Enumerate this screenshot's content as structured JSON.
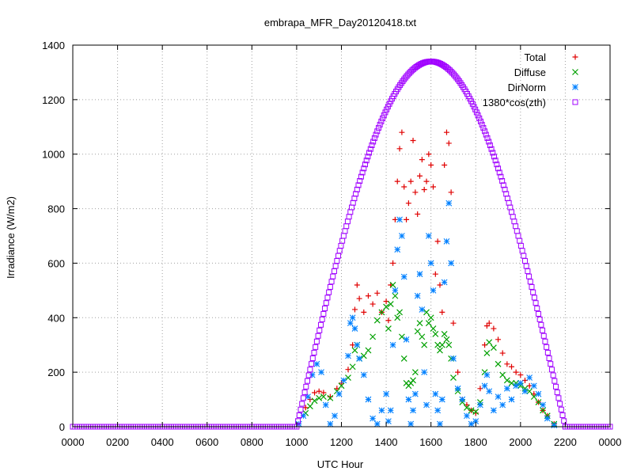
{
  "chart_data": {
    "type": "scatter",
    "title": "embrapa_MFR_Day20120418.txt",
    "xlabel": "UTC Hour",
    "ylabel": "Irradiance (W/m2)",
    "xlim": [
      0,
      2400
    ],
    "ylim": [
      0,
      1400
    ],
    "x_ticks": [
      "0000",
      "0200",
      "0400",
      "0600",
      "0800",
      "1000",
      "1200",
      "1400",
      "1600",
      "1800",
      "2000",
      "2200",
      "0000"
    ],
    "y_ticks": [
      "0",
      "200",
      "400",
      "600",
      "800",
      "1000",
      "1200",
      "1400"
    ],
    "grid": true,
    "legend_position": "top-right",
    "colors": {
      "total": "#e00000",
      "diffuse": "#00a000",
      "dirnorm": "#0080ff",
      "cos": "#a000ff"
    },
    "series": [
      {
        "name": "Total",
        "marker": "plus",
        "points": [
          [
            1040,
            70
          ],
          [
            1060,
            100
          ],
          [
            1080,
            125
          ],
          [
            1100,
            130
          ],
          [
            1120,
            125
          ],
          [
            1150,
            110
          ],
          [
            1180,
            140
          ],
          [
            1200,
            160
          ],
          [
            1230,
            210
          ],
          [
            1250,
            300
          ],
          [
            1260,
            430
          ],
          [
            1270,
            520
          ],
          [
            1280,
            470
          ],
          [
            1300,
            420
          ],
          [
            1320,
            480
          ],
          [
            1340,
            450
          ],
          [
            1360,
            490
          ],
          [
            1380,
            420
          ],
          [
            1400,
            460
          ],
          [
            1410,
            390
          ],
          [
            1420,
            520
          ],
          [
            1430,
            600
          ],
          [
            1440,
            760
          ],
          [
            1450,
            900
          ],
          [
            1460,
            1020
          ],
          [
            1470,
            1080
          ],
          [
            1480,
            880
          ],
          [
            1490,
            760
          ],
          [
            1500,
            820
          ],
          [
            1510,
            900
          ],
          [
            1520,
            1050
          ],
          [
            1530,
            860
          ],
          [
            1540,
            780
          ],
          [
            1550,
            920
          ],
          [
            1560,
            980
          ],
          [
            1570,
            870
          ],
          [
            1580,
            900
          ],
          [
            1590,
            1000
          ],
          [
            1600,
            960
          ],
          [
            1610,
            880
          ],
          [
            1620,
            560
          ],
          [
            1630,
            680
          ],
          [
            1640,
            520
          ],
          [
            1650,
            420
          ],
          [
            1660,
            960
          ],
          [
            1670,
            1080
          ],
          [
            1680,
            1040
          ],
          [
            1690,
            860
          ],
          [
            1700,
            380
          ],
          [
            1720,
            200
          ],
          [
            1740,
            100
          ],
          [
            1760,
            80
          ],
          [
            1780,
            60
          ],
          [
            1800,
            50
          ],
          [
            1820,
            140
          ],
          [
            1840,
            300
          ],
          [
            1850,
            370
          ],
          [
            1860,
            380
          ],
          [
            1880,
            360
          ],
          [
            1900,
            320
          ],
          [
            1920,
            270
          ],
          [
            1940,
            230
          ],
          [
            1960,
            220
          ],
          [
            1980,
            200
          ],
          [
            2000,
            190
          ],
          [
            2020,
            170
          ],
          [
            2040,
            150
          ],
          [
            2060,
            120
          ],
          [
            2080,
            90
          ],
          [
            2100,
            60
          ],
          [
            2120,
            40
          ],
          [
            2150,
            10
          ]
        ]
      },
      {
        "name": "Diffuse",
        "marker": "cross",
        "points": [
          [
            1040,
            50
          ],
          [
            1060,
            75
          ],
          [
            1080,
            95
          ],
          [
            1100,
            105
          ],
          [
            1120,
            110
          ],
          [
            1150,
            105
          ],
          [
            1180,
            130
          ],
          [
            1200,
            150
          ],
          [
            1230,
            180
          ],
          [
            1250,
            220
          ],
          [
            1260,
            280
          ],
          [
            1270,
            300
          ],
          [
            1280,
            250
          ],
          [
            1300,
            260
          ],
          [
            1320,
            280
          ],
          [
            1340,
            330
          ],
          [
            1360,
            390
          ],
          [
            1380,
            420
          ],
          [
            1400,
            440
          ],
          [
            1410,
            360
          ],
          [
            1420,
            450
          ],
          [
            1430,
            520
          ],
          [
            1440,
            480
          ],
          [
            1450,
            400
          ],
          [
            1460,
            420
          ],
          [
            1470,
            330
          ],
          [
            1480,
            250
          ],
          [
            1490,
            160
          ],
          [
            1500,
            150
          ],
          [
            1510,
            160
          ],
          [
            1520,
            170
          ],
          [
            1530,
            200
          ],
          [
            1540,
            350
          ],
          [
            1550,
            380
          ],
          [
            1560,
            330
          ],
          [
            1570,
            300
          ],
          [
            1580,
            420
          ],
          [
            1590,
            380
          ],
          [
            1600,
            400
          ],
          [
            1610,
            360
          ],
          [
            1620,
            340
          ],
          [
            1630,
            300
          ],
          [
            1640,
            280
          ],
          [
            1650,
            300
          ],
          [
            1660,
            340
          ],
          [
            1670,
            320
          ],
          [
            1680,
            300
          ],
          [
            1690,
            250
          ],
          [
            1700,
            180
          ],
          [
            1720,
            130
          ],
          [
            1740,
            90
          ],
          [
            1760,
            70
          ],
          [
            1780,
            60
          ],
          [
            1800,
            55
          ],
          [
            1820,
            90
          ],
          [
            1840,
            200
          ],
          [
            1850,
            270
          ],
          [
            1860,
            310
          ],
          [
            1880,
            290
          ],
          [
            1900,
            230
          ],
          [
            1920,
            190
          ],
          [
            1940,
            170
          ],
          [
            1960,
            160
          ],
          [
            1980,
            160
          ],
          [
            2000,
            150
          ],
          [
            2020,
            140
          ],
          [
            2040,
            130
          ],
          [
            2060,
            110
          ],
          [
            2080,
            90
          ],
          [
            2100,
            60
          ],
          [
            2120,
            40
          ],
          [
            2150,
            10
          ]
        ]
      },
      {
        "name": "DirNorm",
        "marker": "star",
        "points": [
          [
            1010,
            10
          ],
          [
            1030,
            40
          ],
          [
            1050,
            110
          ],
          [
            1070,
            190
          ],
          [
            1090,
            230
          ],
          [
            1110,
            200
          ],
          [
            1130,
            80
          ],
          [
            1150,
            10
          ],
          [
            1170,
            40
          ],
          [
            1190,
            120
          ],
          [
            1210,
            170
          ],
          [
            1230,
            260
          ],
          [
            1240,
            380
          ],
          [
            1250,
            400
          ],
          [
            1260,
            360
          ],
          [
            1270,
            300
          ],
          [
            1280,
            250
          ],
          [
            1300,
            190
          ],
          [
            1320,
            100
          ],
          [
            1340,
            30
          ],
          [
            1360,
            10
          ],
          [
            1380,
            60
          ],
          [
            1400,
            120
          ],
          [
            1410,
            20
          ],
          [
            1420,
            60
          ],
          [
            1430,
            300
          ],
          [
            1440,
            500
          ],
          [
            1450,
            650
          ],
          [
            1460,
            760
          ],
          [
            1470,
            700
          ],
          [
            1480,
            550
          ],
          [
            1490,
            320
          ],
          [
            1500,
            100
          ],
          [
            1510,
            10
          ],
          [
            1520,
            60
          ],
          [
            1530,
            120
          ],
          [
            1540,
            480
          ],
          [
            1550,
            560
          ],
          [
            1560,
            430
          ],
          [
            1570,
            200
          ],
          [
            1580,
            80
          ],
          [
            1590,
            700
          ],
          [
            1600,
            600
          ],
          [
            1610,
            500
          ],
          [
            1620,
            120
          ],
          [
            1630,
            60
          ],
          [
            1640,
            10
          ],
          [
            1650,
            100
          ],
          [
            1660,
            530
          ],
          [
            1670,
            680
          ],
          [
            1680,
            820
          ],
          [
            1690,
            600
          ],
          [
            1700,
            250
          ],
          [
            1720,
            140
          ],
          [
            1740,
            100
          ],
          [
            1760,
            40
          ],
          [
            1780,
            10
          ],
          [
            1800,
            20
          ],
          [
            1820,
            80
          ],
          [
            1840,
            150
          ],
          [
            1850,
            190
          ],
          [
            1860,
            130
          ],
          [
            1880,
            60
          ],
          [
            1900,
            110
          ],
          [
            1920,
            80
          ],
          [
            1940,
            140
          ],
          [
            1960,
            100
          ],
          [
            1980,
            150
          ],
          [
            2000,
            160
          ],
          [
            2020,
            130
          ],
          [
            2040,
            180
          ],
          [
            2060,
            150
          ],
          [
            2080,
            120
          ],
          [
            2100,
            80
          ],
          [
            2120,
            30
          ],
          [
            2150,
            5
          ]
        ]
      },
      {
        "name": "1380*cos(zth)",
        "marker": "square",
        "curve": {
          "x_start": 1000,
          "x_peak": 1600,
          "x_end": 2200,
          "peak": 1340,
          "step": 6
        }
      }
    ]
  }
}
